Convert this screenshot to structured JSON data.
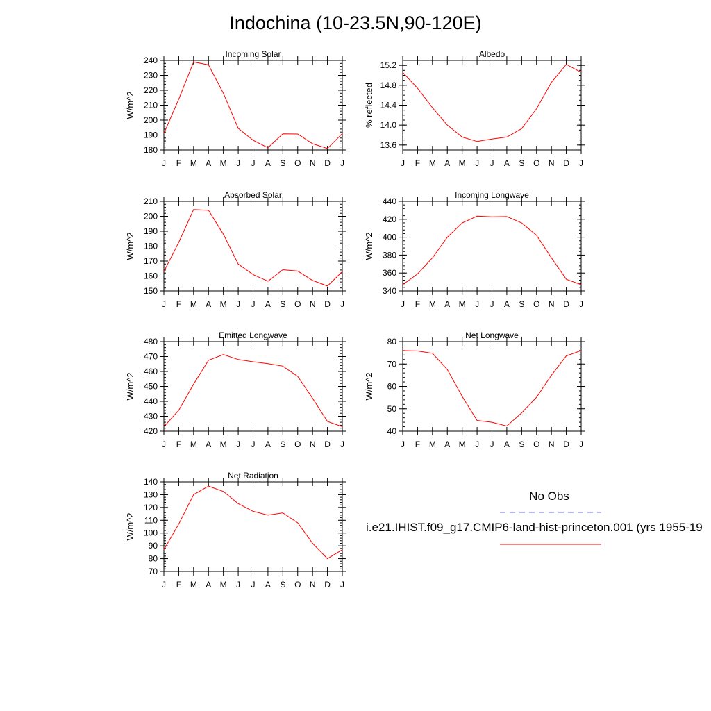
{
  "title": "Indochina (10-23.5N,90-120E)",
  "colors": {
    "model_line": "#ff0000",
    "obs_line": "#6a6aff",
    "axis": "#000000"
  },
  "legend": {
    "obs_label": "No Obs",
    "model_label": "i.e21.IHIST.f09_g17.CMIP6-land-hist-princeton.001 (yrs 1955-19"
  },
  "chart_data": [
    {
      "type": "line",
      "title": "Incoming Solar",
      "ylabel": "W/m^2",
      "categories": [
        "J",
        "F",
        "M",
        "A",
        "M",
        "J",
        "J",
        "A",
        "S",
        "O",
        "N",
        "D",
        "J"
      ],
      "ylim": [
        180,
        240
      ],
      "yticks": [
        180,
        190,
        200,
        210,
        220,
        230,
        240
      ],
      "yminor": 2,
      "series": [
        {
          "values": [
            191,
            214,
            239,
            237,
            218,
            194.5,
            186.5,
            181.5,
            190.8,
            190.7,
            184.2,
            181,
            191
          ]
        }
      ]
    },
    {
      "type": "line",
      "title": "Albedo",
      "ylabel": "% reflected",
      "categories": [
        "J",
        "F",
        "M",
        "A",
        "M",
        "J",
        "J",
        "A",
        "S",
        "O",
        "N",
        "D",
        "J"
      ],
      "ylim": [
        13.5,
        15.3
      ],
      "yticks": [
        "13.6",
        "14.0",
        "14.4",
        "14.8",
        "15.2"
      ],
      "yminor": 0.1,
      "series": [
        {
          "values": [
            15.06,
            14.74,
            14.35,
            14.0,
            13.76,
            13.67,
            13.72,
            13.76,
            13.93,
            14.33,
            14.86,
            15.22,
            15.06
          ]
        }
      ]
    },
    {
      "type": "line",
      "title": "Absorbed Solar",
      "ylabel": "W/m^2",
      "categories": [
        "J",
        "F",
        "M",
        "A",
        "M",
        "J",
        "J",
        "A",
        "S",
        "O",
        "N",
        "D",
        "J"
      ],
      "ylim": [
        150,
        210
      ],
      "yticks": [
        150,
        160,
        170,
        180,
        190,
        200,
        210
      ],
      "yminor": 2,
      "series": [
        {
          "values": [
            163,
            182.5,
            204.5,
            204,
            188,
            168,
            161,
            156.5,
            164.2,
            163.3,
            157,
            153.3,
            163
          ]
        }
      ]
    },
    {
      "type": "line",
      "title": "Incoming Longwave",
      "ylabel": "W/m^2",
      "categories": [
        "J",
        "F",
        "M",
        "A",
        "M",
        "J",
        "J",
        "A",
        "S",
        "O",
        "N",
        "D",
        "J"
      ],
      "ylim": [
        340,
        440
      ],
      "yticks": [
        340,
        360,
        380,
        400,
        420,
        440
      ],
      "yminor": 4,
      "series": [
        {
          "values": [
            347,
            359,
            377,
            400,
            416,
            423.5,
            422.8,
            423,
            416,
            402,
            377,
            353,
            347
          ]
        }
      ]
    },
    {
      "type": "line",
      "title": "Emitted Longwave",
      "ylabel": "W/m^2",
      "categories": [
        "J",
        "F",
        "M",
        "A",
        "M",
        "J",
        "J",
        "A",
        "S",
        "O",
        "N",
        "D",
        "J"
      ],
      "ylim": [
        420,
        480
      ],
      "yticks": [
        420,
        430,
        440,
        450,
        460,
        470,
        480
      ],
      "yminor": 2,
      "series": [
        {
          "values": [
            423,
            434,
            451.5,
            467.5,
            471.3,
            468,
            466.5,
            465.2,
            463.6,
            456.7,
            442,
            426.5,
            423
          ]
        }
      ]
    },
    {
      "type": "line",
      "title": "Net Longwave",
      "ylabel": "W/m^2",
      "categories": [
        "J",
        "F",
        "M",
        "A",
        "M",
        "J",
        "J",
        "A",
        "S",
        "O",
        "N",
        "D",
        "J"
      ],
      "ylim": [
        40,
        80
      ],
      "yticks": [
        40,
        50,
        60,
        70,
        80
      ],
      "yminor": 2,
      "series": [
        {
          "values": [
            76,
            75.8,
            74.8,
            67.5,
            55.5,
            44.8,
            44,
            42.3,
            48.2,
            55.2,
            65,
            73.6,
            76
          ]
        }
      ]
    },
    {
      "type": "line",
      "title": "Net Radiation",
      "ylabel": "W/m^2",
      "categories": [
        "J",
        "F",
        "M",
        "A",
        "M",
        "J",
        "J",
        "A",
        "S",
        "O",
        "N",
        "D",
        "J"
      ],
      "ylim": [
        70,
        140
      ],
      "yticks": [
        70,
        80,
        90,
        100,
        110,
        120,
        130,
        140
      ],
      "yminor": 2,
      "series": [
        {
          "values": [
            87,
            107,
            130,
            136.7,
            132.5,
            123,
            117,
            114,
            115.8,
            108,
            92,
            80,
            87
          ]
        }
      ]
    }
  ]
}
